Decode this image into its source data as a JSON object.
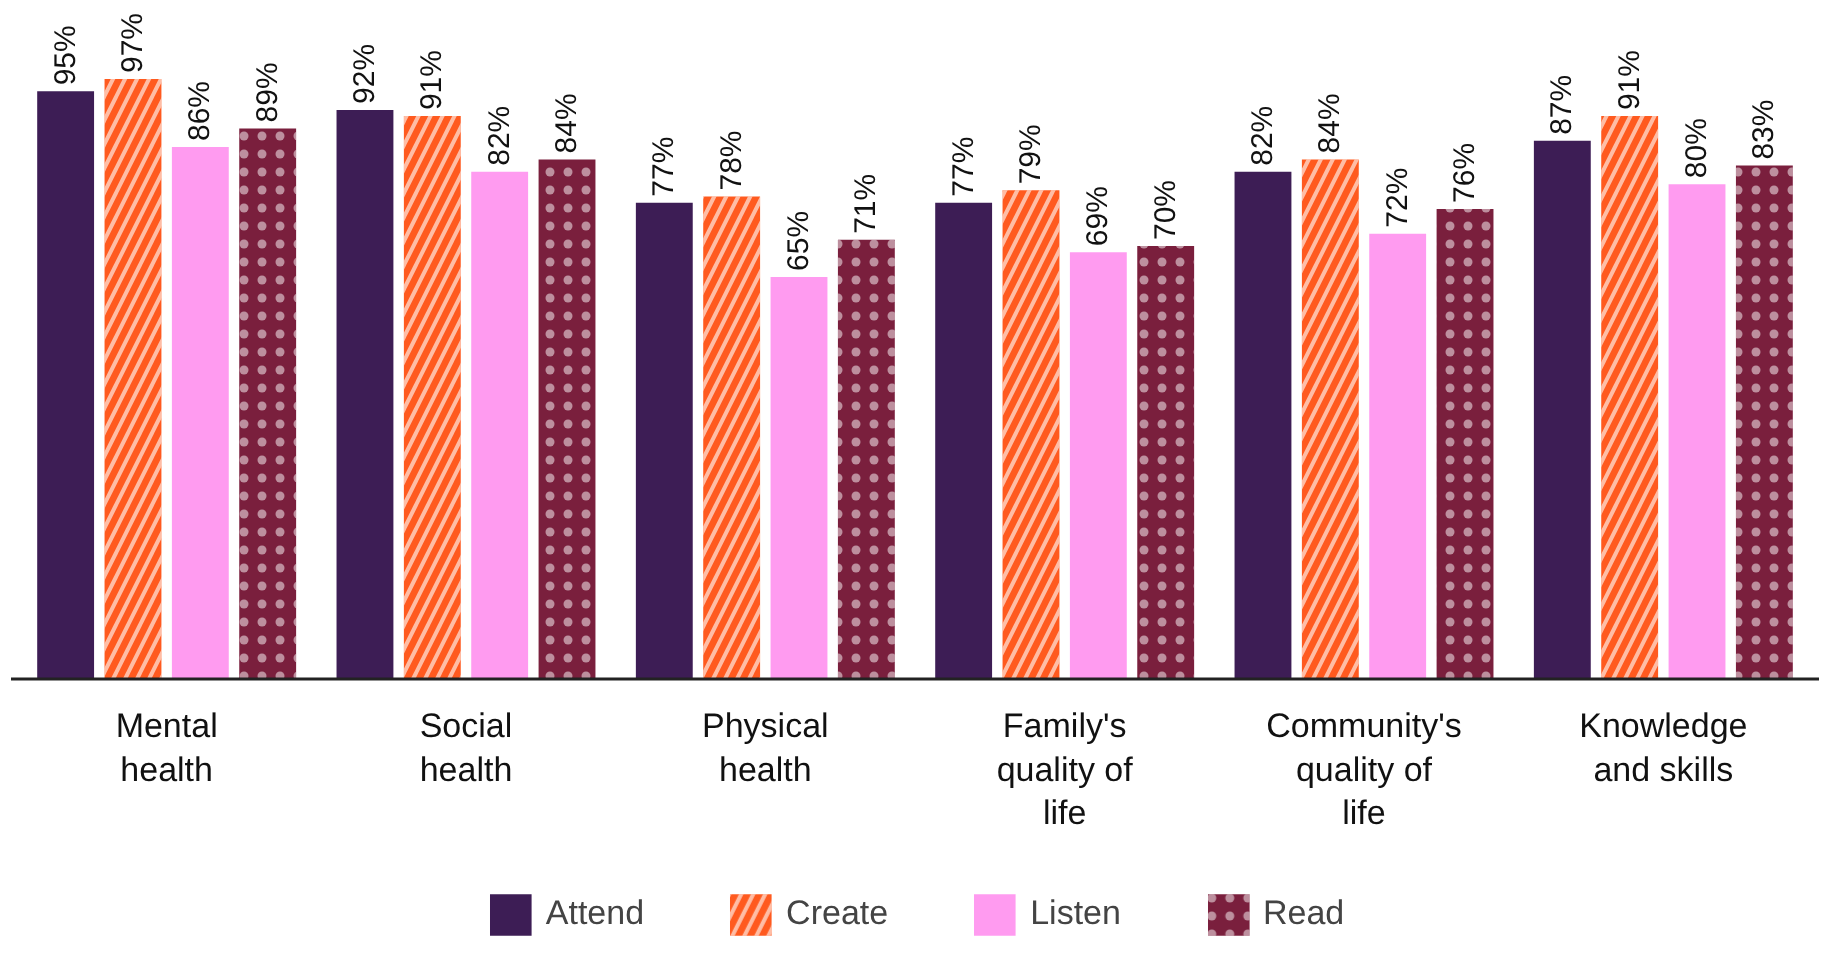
{
  "chart_data": {
    "type": "bar",
    "categories": [
      "Mental health",
      "Social health",
      "Physical health",
      "Family's quality of life",
      "Community's quality of life",
      "Knowledge and skills"
    ],
    "tick_labels": "x",
    "grid": false,
    "legend": "bottom",
    "series": [
      {
        "name": "Attend",
        "color": "#3d1d55",
        "values": [
          95,
          92,
          77,
          77,
          82,
          87
        ],
        "value_labels": [
          "95%",
          "92%",
          "77%",
          "77%",
          "82%",
          "87%"
        ]
      },
      {
        "name": "Create",
        "color": "#ff5a1f",
        "values": [
          97,
          91,
          78,
          79,
          84,
          91
        ],
        "value_labels": [
          "97%",
          "91%",
          "78%",
          "79%",
          "84%",
          "91%"
        ]
      },
      {
        "name": "Listen",
        "color": "#ff9bf0",
        "values": [
          86,
          82,
          65,
          69,
          72,
          80
        ],
        "value_labels": [
          "86%",
          "82%",
          "65%",
          "69%",
          "72%",
          "80%"
        ]
      },
      {
        "name": "Read",
        "color": "#7a1f3d",
        "values": [
          89,
          84,
          71,
          70,
          76,
          83
        ],
        "value_labels": [
          "89%",
          "84%",
          "71%",
          "70%",
          "76%",
          "83%"
        ]
      }
    ]
  }
}
